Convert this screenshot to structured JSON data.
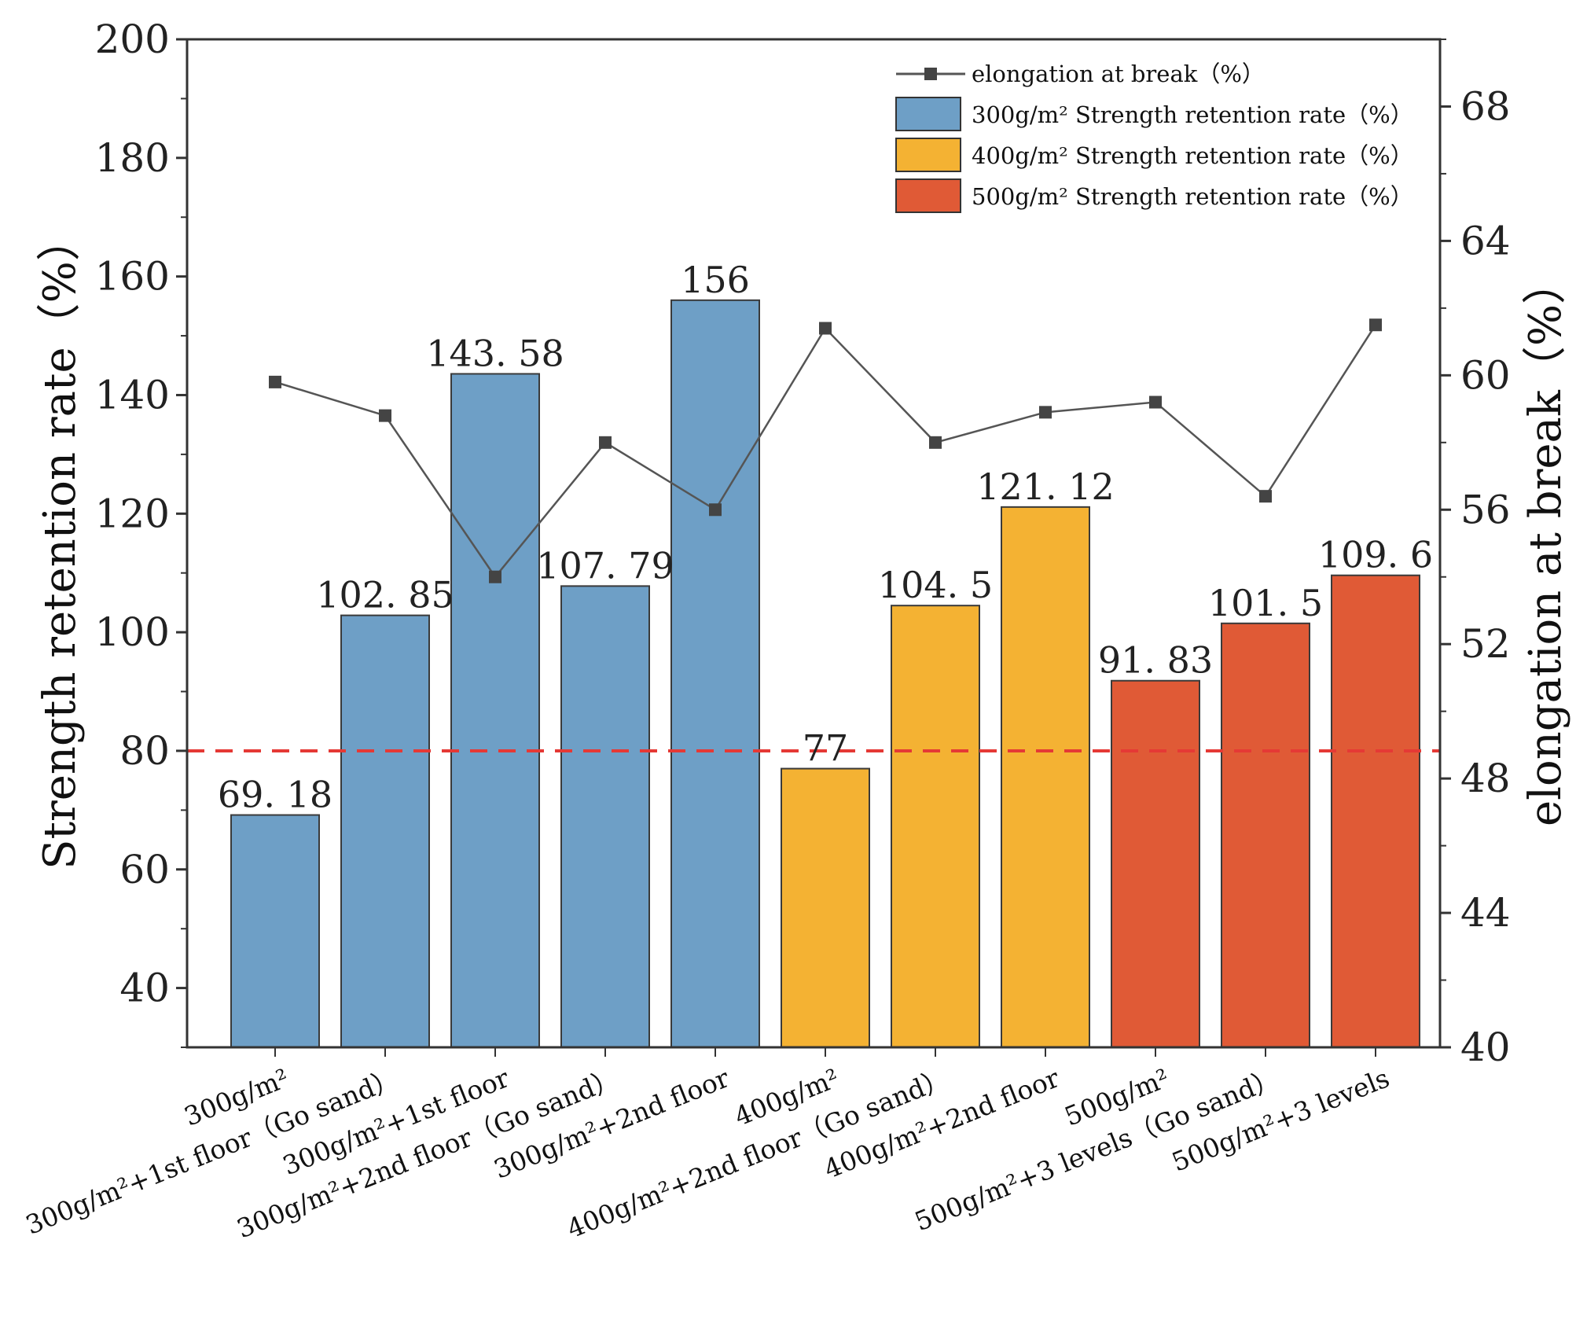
{
  "chart_data": {
    "type": "bar",
    "categories": [
      "300g/m²",
      "300g/m²+1st floor（Go sand）",
      "300g/m²+1st floor",
      "300g/m²+2nd floor（Go sand）",
      "300g/m²+2nd floor",
      "400g/m²",
      "400g/m²+2nd floor（Go sand）",
      "400g/m²+2nd floor",
      "500g/m²",
      "500g/m²+3 levels（Go sand）",
      "500g/m²+3 levels"
    ],
    "series": [
      {
        "name": "300g/m² Strength retention rate（%）",
        "type": "bar",
        "axis": "left",
        "color": "#6E9FC6",
        "values": [
          69.18,
          102.85,
          143.58,
          107.79,
          156,
          null,
          null,
          null,
          null,
          null,
          null
        ],
        "labels": [
          "69. 18",
          "102. 85",
          "143. 58",
          "107. 79",
          "156",
          null,
          null,
          null,
          null,
          null,
          null
        ]
      },
      {
        "name": "400g/m² Strength retention rate（%）",
        "type": "bar",
        "axis": "left",
        "color": "#F4B233",
        "values": [
          null,
          null,
          null,
          null,
          null,
          77,
          104.5,
          121.12,
          null,
          null,
          null
        ],
        "labels": [
          null,
          null,
          null,
          null,
          null,
          "77",
          "104. 5",
          "121. 12",
          null,
          null,
          null
        ]
      },
      {
        "name": "500g/m² Strength retention rate（%）",
        "type": "bar",
        "axis": "left",
        "color": "#E05A36",
        "values": [
          null,
          null,
          null,
          null,
          null,
          null,
          null,
          null,
          91.83,
          101.5,
          109.6
        ],
        "labels": [
          null,
          null,
          null,
          null,
          null,
          null,
          null,
          null,
          "91. 83",
          "101. 5",
          "109. 6"
        ]
      },
      {
        "name": "elongation at break（%）",
        "type": "line",
        "axis": "right",
        "color": "#555555",
        "values": [
          59.8,
          58.8,
          54.0,
          58.0,
          56.0,
          61.4,
          58.0,
          58.9,
          59.2,
          56.4,
          61.5
        ]
      }
    ],
    "ylabel": "Strength retention rate（%）",
    "y2label": "elongation at break（%）",
    "ylim": [
      30,
      200
    ],
    "y2lim": [
      40,
      70
    ],
    "yticks": [
      "40",
      "60",
      "80",
      "100",
      "120",
      "140",
      "160",
      "180",
      "200"
    ],
    "y2ticks": [
      "40",
      "44",
      "48",
      "52",
      "56",
      "60",
      "64",
      "68"
    ],
    "reference_line": {
      "value": 80,
      "label": "80",
      "color": "#E53935",
      "style": "dashed"
    },
    "legend_position": "top-right",
    "grid": false
  }
}
